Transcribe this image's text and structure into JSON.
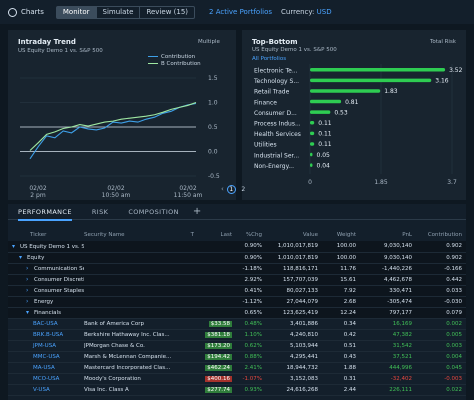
{
  "topbar": {
    "charts_label": "Charts",
    "tabs": [
      "Monitor",
      "Simulate",
      "Review (15)"
    ],
    "portfolios": "2 Active Portfolios",
    "currency_label": "Currency:",
    "currency_value": "USD"
  },
  "intraday": {
    "title": "Intraday Trend",
    "subtitle": "US Equity Demo 1 vs. S&P 500",
    "multiple_label": "Multiple",
    "legend": [
      "Contribution",
      "B Contribution"
    ],
    "x_ticks": [
      [
        "02/02",
        "2 pm"
      ],
      [
        "02/02",
        "10:50 am"
      ],
      [
        "02/02",
        "11:50 am"
      ]
    ],
    "y_ticks": [
      "1.5",
      "1.0",
      "0.5",
      "0.0",
      "-0.5"
    ],
    "colors": {
      "contribution": "#3ea0e8",
      "benchmark": "#9fe8a2"
    },
    "chart_data": {
      "type": "line",
      "ylim": [
        -0.5,
        1.5
      ],
      "series": [
        {
          "name": "Contribution",
          "values": [
            -0.15,
            0.1,
            0.32,
            0.28,
            0.42,
            0.38,
            0.5,
            0.46,
            0.44,
            0.48,
            0.6,
            0.58,
            0.62,
            0.6,
            0.66,
            0.7,
            0.78,
            0.82,
            0.9,
            0.95,
            0.98
          ]
        },
        {
          "name": "B Contribution",
          "values": [
            0.02,
            0.18,
            0.35,
            0.4,
            0.47,
            0.5,
            0.55,
            0.52,
            0.56,
            0.6,
            0.62,
            0.66,
            0.68,
            0.7,
            0.72,
            0.75,
            0.8,
            0.86,
            0.9,
            0.94,
            1.0
          ]
        }
      ]
    }
  },
  "topbottom": {
    "title": "Top-Bottom",
    "subtitle": "US Equity Demo 1 vs. S&P 500",
    "filter": "All Portfolios",
    "total_label": "Total Risk",
    "x_ticks": [
      "0",
      "1.85",
      "3.7"
    ],
    "bar_color": "#2ecc52",
    "chart_data": {
      "type": "bar",
      "xlim": [
        0,
        3.7
      ],
      "categories": [
        "Electronic Te...",
        "Technology S...",
        "Retail Trade",
        "Finance",
        "Consumer D...",
        "Process Indus...",
        "Health Services",
        "Utilities",
        "Industrial Ser...",
        "Non-Energy..."
      ],
      "values": [
        3.52,
        3.16,
        1.83,
        0.81,
        0.53,
        0.11,
        0.11,
        0.11,
        0.05,
        0.04
      ],
      "value_labels": [
        "3.52",
        "3.16",
        "1.83",
        "0.81",
        "0.53",
        "0.11",
        "0.11",
        "0.11",
        "0.05",
        "0.04"
      ]
    }
  },
  "pager": {
    "pages": [
      "1",
      "2"
    ]
  },
  "bottom": {
    "tabs": [
      "PERFORMANCE",
      "RISK",
      "COMPOSITION"
    ],
    "add_label": "+",
    "columns": [
      "Ticker",
      "Security Name",
      "T",
      "Last",
      "%Chg",
      "Value",
      "Weight",
      "PnL",
      "Contribution"
    ],
    "rows": [
      {
        "indent": 0,
        "caret": "▾",
        "ticker": "US Equity Demo 1 vs. S&P 500",
        "name": "",
        "t": "",
        "last": "",
        "chg": "0.90%",
        "value": "1,010,017,819",
        "weight": "100.00",
        "pnl": "9,030,140",
        "contrib": "0.902",
        "kind": "grp"
      },
      {
        "indent": 1,
        "caret": "▾",
        "ticker": "Equity",
        "name": "",
        "t": "",
        "last": "",
        "chg": "0.90%",
        "value": "1,010,017,819",
        "weight": "100.00",
        "pnl": "9,030,140",
        "contrib": "0.902",
        "kind": "grp"
      },
      {
        "indent": 2,
        "caret": "›",
        "ticker": "Communication Services",
        "name": "",
        "t": "",
        "last": "",
        "chg": "-1.18%",
        "value": "118,816,171",
        "weight": "11.76",
        "pnl": "-1,440,226",
        "contrib": "-0.166",
        "kind": "grp"
      },
      {
        "indent": 2,
        "caret": "›",
        "ticker": "Consumer Discretionary",
        "name": "",
        "t": "",
        "last": "",
        "chg": "2.92%",
        "value": "157,707,039",
        "weight": "15.61",
        "pnl": "4,462,678",
        "contrib": "0.442",
        "kind": "grp"
      },
      {
        "indent": 2,
        "caret": "›",
        "ticker": "Consumer Staples",
        "name": "",
        "t": "",
        "last": "",
        "chg": "0.41%",
        "value": "80,027,133",
        "weight": "7.92",
        "pnl": "330,471",
        "contrib": "0.033",
        "kind": "grp"
      },
      {
        "indent": 2,
        "caret": "›",
        "ticker": "Energy",
        "name": "",
        "t": "",
        "last": "",
        "chg": "-1.12%",
        "value": "27,044,079",
        "weight": "2.68",
        "pnl": "-305,474",
        "contrib": "-0.030",
        "kind": "grp"
      },
      {
        "indent": 2,
        "caret": "▾",
        "ticker": "Financials",
        "name": "",
        "t": "",
        "last": "",
        "chg": "0.65%",
        "value": "123,625,419",
        "weight": "12.24",
        "pnl": "797,177",
        "contrib": "0.079",
        "kind": "grp"
      },
      {
        "indent": 3,
        "caret": "",
        "ticker": "BAC-USA",
        "name": "Bank of America Corp",
        "t": "",
        "last": "$33.58",
        "chg": "0.48%",
        "value": "3,401,886",
        "weight": "0.34",
        "pnl": "16,169",
        "contrib": "0.002",
        "kind": "up"
      },
      {
        "indent": 3,
        "caret": "",
        "ticker": "BRK.B-USA",
        "name": "Berkshire Hathaway Inc. Clas...",
        "t": "",
        "last": "$381.18",
        "chg": "1.10%",
        "value": "4,240,810",
        "weight": "0.42",
        "pnl": "47,382",
        "contrib": "0.005",
        "kind": "up"
      },
      {
        "indent": 3,
        "caret": "",
        "ticker": "JPM-USA",
        "name": "JPMorgan Chase & Co.",
        "t": "",
        "last": "$173.20",
        "chg": "0.62%",
        "value": "5,103,944",
        "weight": "0.51",
        "pnl": "31,542",
        "contrib": "0.003",
        "kind": "up"
      },
      {
        "indent": 3,
        "caret": "",
        "ticker": "MMC-USA",
        "name": "Marsh & McLennan Companie...",
        "t": "",
        "last": "$194.42",
        "chg": "0.88%",
        "value": "4,295,441",
        "weight": "0.43",
        "pnl": "37,521",
        "contrib": "0.004",
        "kind": "up"
      },
      {
        "indent": 3,
        "caret": "",
        "ticker": "MA-USA",
        "name": "Mastercard Incorporated Clas...",
        "t": "",
        "last": "$462.24",
        "chg": "2.41%",
        "value": "18,944,732",
        "weight": "1.88",
        "pnl": "444,996",
        "contrib": "0.045",
        "kind": "up"
      },
      {
        "indent": 3,
        "caret": "",
        "ticker": "MCO-USA",
        "name": "Moody's Corporation",
        "t": "",
        "last": "$400.16",
        "chg": "-1.07%",
        "value": "3,152,083",
        "weight": "0.31",
        "pnl": "-32,402",
        "contrib": "-0.003",
        "kind": "dn"
      },
      {
        "indent": 3,
        "caret": "",
        "ticker": "V-USA",
        "name": "Visa Inc. Class A",
        "t": "",
        "last": "$277.74",
        "chg": "0.93%",
        "value": "24,616,268",
        "weight": "2.44",
        "pnl": "226,111",
        "contrib": "0.022",
        "kind": "up"
      }
    ]
  }
}
